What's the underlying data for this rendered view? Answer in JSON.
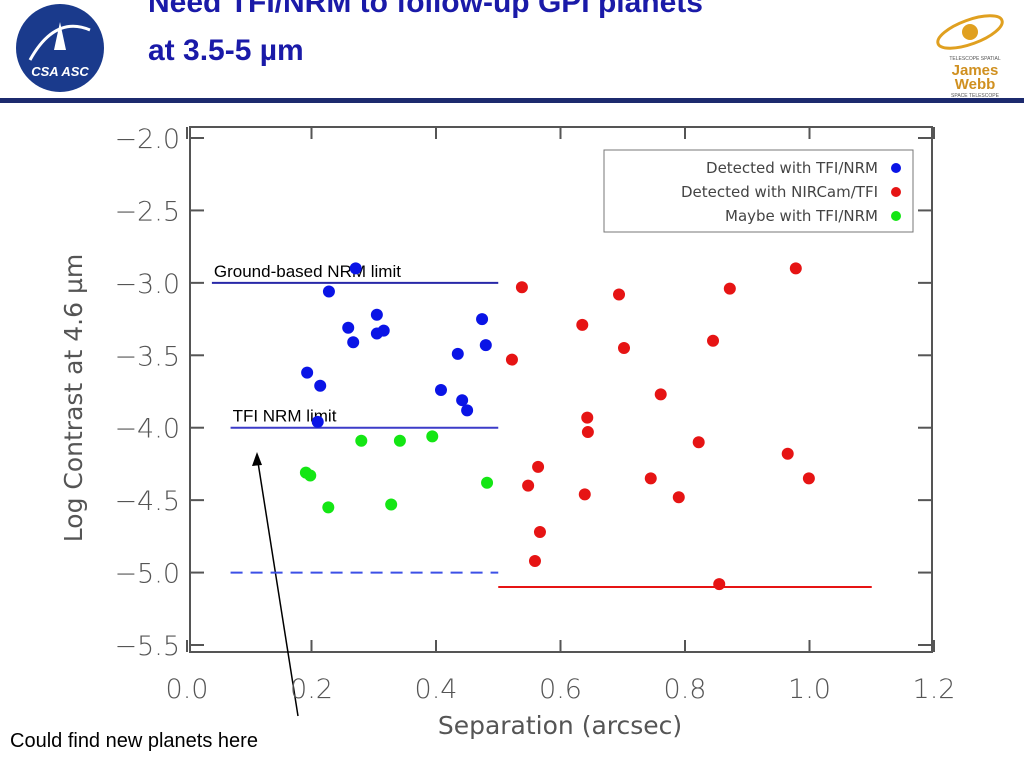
{
  "title_lines": [
    "Need TFI/NRM to follow-up GPI planets",
    "at 3.5-5 µm"
  ],
  "logos": {
    "left": "CSA ASC",
    "right_top": "TELESCOPE SPATIAL",
    "right_main_1": "James",
    "right_main_2": "Webb",
    "right_bottom": "SPACE TELESCOPE"
  },
  "chart_data": {
    "type": "scatter",
    "xlabel": "Separation (arcsec)",
    "ylabel": "Log Contrast at 4.6 µm",
    "xlim": [
      0,
      1.2
    ],
    "ylim": [
      -5.5,
      -2.0
    ],
    "xticks": [
      {
        "value": 0,
        "label": "0.0"
      },
      0.2,
      0.4,
      0.6,
      0.8,
      {
        "value": 1,
        "label": "1.0"
      },
      1.2
    ],
    "yticks": [
      {
        "value": -2,
        "label": "−2.0"
      },
      {
        "value": -2.5,
        "label": "−2.5"
      },
      {
        "value": -3,
        "label": "−3.0"
      },
      {
        "value": -3.5,
        "label": "−3.5"
      },
      {
        "value": -4,
        "label": "−4.0"
      },
      {
        "value": -4.5,
        "label": "−4.5"
      },
      {
        "value": -5,
        "label": "−5.0"
      },
      {
        "value": -5.5,
        "label": "−5.5"
      }
    ],
    "legend": "upper right",
    "series": [
      {
        "name": "Detected with TFI/NRM",
        "color": "#0a14e6",
        "x": [
          0.271,
          0.228,
          0.193,
          0.214,
          0.259,
          0.267,
          0.305,
          0.316,
          0.305,
          0.21,
          0.408,
          0.435,
          0.442,
          0.45,
          0.474,
          0.48
        ],
        "y": [
          -2.9,
          -3.06,
          -3.62,
          -3.71,
          -3.31,
          -3.41,
          -3.22,
          -3.33,
          -3.35,
          -3.96,
          -3.74,
          -3.49,
          -3.81,
          -3.88,
          -3.25,
          -3.43
        ]
      },
      {
        "name": "Detected with NIRCam/TFI",
        "color": "#e61414",
        "x": [
          0.978,
          0.538,
          0.694,
          0.872,
          0.522,
          0.635,
          0.702,
          0.845,
          0.761,
          0.643,
          0.644,
          0.822,
          0.965,
          0.564,
          0.548,
          0.639,
          0.745,
          0.79,
          0.999,
          0.567,
          0.559,
          0.855
        ],
        "y": [
          -2.9,
          -3.03,
          -3.08,
          -3.04,
          -3.53,
          -3.29,
          -3.45,
          -3.4,
          -3.77,
          -3.93,
          -4.03,
          -4.1,
          -4.18,
          -4.27,
          -4.4,
          -4.46,
          -4.35,
          -4.48,
          -4.35,
          -4.72,
          -4.92,
          -5.08
        ]
      },
      {
        "name": "Maybe with TFI/NRM",
        "color": "#14e614",
        "x": [
          0.191,
          0.198,
          0.227,
          0.28,
          0.328,
          0.342,
          0.394,
          0.482
        ],
        "y": [
          -4.31,
          -4.33,
          -4.55,
          -4.09,
          -4.53,
          -4.09,
          -4.06,
          -4.38
        ]
      }
    ],
    "lines": [
      {
        "label": "Ground-based NRM limit",
        "color": "#2828a8",
        "dashed": false,
        "x": [
          0.04,
          0.5
        ],
        "y": [
          -3,
          -3
        ]
      },
      {
        "label": "TFI NRM limit",
        "color": "#3c3cc8",
        "dashed": false,
        "x": [
          0.07,
          0.5
        ],
        "y": [
          -4,
          -4
        ]
      },
      {
        "color": "#3c50e6",
        "dashed": true,
        "x": [
          0.07,
          0.5
        ],
        "y": [
          -5,
          -5
        ]
      },
      {
        "color": "#e61414",
        "dashed": false,
        "x": [
          0.5,
          1.1
        ],
        "y": [
          -5.1,
          -5.1
        ]
      }
    ],
    "annotation": "Could find new planets here"
  }
}
